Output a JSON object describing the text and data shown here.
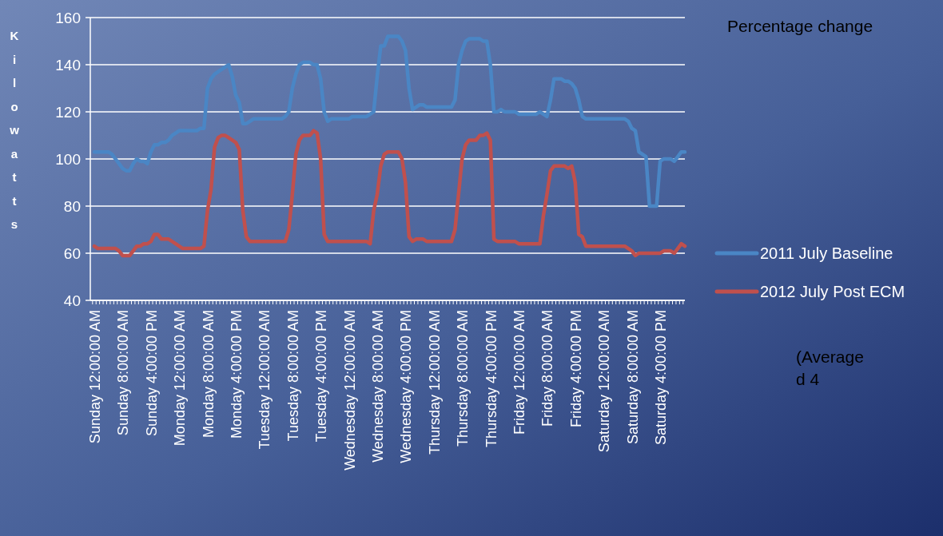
{
  "chart_data": {
    "type": "line",
    "ylabel": "Kilowatts",
    "ylim": [
      40,
      160
    ],
    "yticks": [
      40,
      60,
      80,
      100,
      120,
      140,
      160
    ],
    "grid": "y",
    "legend": "right",
    "line_style": "solid",
    "marker": "none",
    "annotations": [
      "Percentage change",
      "(Average\nd 4"
    ],
    "categories": [
      "Sunday 12:00:00 AM",
      null,
      null,
      null,
      null,
      null,
      null,
      null,
      "Sunday 8:00:00 AM",
      null,
      null,
      null,
      null,
      null,
      null,
      null,
      "Sunday 4:00:00 PM",
      null,
      null,
      null,
      null,
      null,
      null,
      null,
      "Monday 12:00:00 AM",
      null,
      null,
      null,
      null,
      null,
      null,
      null,
      "Monday 8:00:00 AM",
      null,
      null,
      null,
      null,
      null,
      null,
      null,
      "Monday 4:00:00 PM",
      null,
      null,
      null,
      null,
      null,
      null,
      null,
      "Tuesday 12:00:00 AM",
      null,
      null,
      null,
      null,
      null,
      null,
      null,
      "Tuesday 8:00:00 AM",
      null,
      null,
      null,
      null,
      null,
      null,
      null,
      "Tuesday 4:00:00 PM",
      null,
      null,
      null,
      null,
      null,
      null,
      null,
      "Wednesday 12:00:00 AM",
      null,
      null,
      null,
      null,
      null,
      null,
      null,
      "Wednesday 8:00:00 AM",
      null,
      null,
      null,
      null,
      null,
      null,
      null,
      "Wednesday 4:00:00 PM",
      null,
      null,
      null,
      null,
      null,
      null,
      null,
      "Thursday 12:00:00 AM",
      null,
      null,
      null,
      null,
      null,
      null,
      null,
      "Thursday 8:00:00 AM",
      null,
      null,
      null,
      null,
      null,
      null,
      null,
      "Thursday 4:00:00 PM",
      null,
      null,
      null,
      null,
      null,
      null,
      null,
      "Friday 12:00:00 AM",
      null,
      null,
      null,
      null,
      null,
      null,
      null,
      "Friday 8:00:00 AM",
      null,
      null,
      null,
      null,
      null,
      null,
      null,
      "Friday 4:00:00 PM",
      null,
      null,
      null,
      null,
      null,
      null,
      null,
      "Saturday 12:00:00 AM",
      null,
      null,
      null,
      null,
      null,
      null,
      null,
      "Saturday 8:00:00 AM",
      null,
      null,
      null,
      null,
      null,
      null,
      null,
      "Saturday 4:00:00 PM",
      null,
      null,
      null,
      null,
      null,
      null,
      null
    ],
    "series": [
      {
        "name": "2011 July Baseline",
        "color": "#4a86c5",
        "values": [
          103,
          103,
          103,
          103,
          103,
          102,
          100,
          98,
          96,
          95,
          95,
          98,
          100,
          99,
          99,
          98,
          103,
          106,
          106,
          107,
          107,
          108,
          110,
          111,
          112,
          112,
          112,
          112,
          112,
          112,
          113,
          113,
          130,
          134,
          136,
          137,
          138,
          139,
          140,
          135,
          127,
          124,
          115,
          115,
          116,
          117,
          117,
          117,
          117,
          117,
          117,
          117,
          117,
          117,
          118,
          120,
          130,
          136,
          140,
          141,
          141,
          141,
          140,
          140,
          134,
          120,
          116,
          117,
          117,
          117,
          117,
          117,
          117,
          118,
          118,
          118,
          118,
          118,
          119,
          120,
          135,
          148,
          148,
          152,
          152,
          152,
          152,
          150,
          146,
          130,
          121,
          122,
          123,
          123,
          122,
          122,
          122,
          122,
          122,
          122,
          122,
          122,
          125,
          140,
          146,
          150,
          151,
          151,
          151,
          151,
          150,
          150,
          140,
          120,
          120,
          121,
          120,
          120,
          120,
          120,
          119,
          119,
          119,
          119,
          119,
          119,
          120,
          119,
          118,
          125,
          134,
          134,
          134,
          133,
          133,
          132,
          130,
          125,
          118,
          117,
          117,
          117,
          117,
          117,
          117,
          117,
          117,
          117,
          117,
          117,
          117,
          116,
          113,
          112,
          103,
          102,
          101,
          80,
          80,
          80,
          99,
          100,
          100,
          100,
          99,
          101,
          103,
          103
        ]
      },
      {
        "name": "2012 July Post ECM",
        "color": "#c0504d",
        "values": [
          63,
          62,
          62,
          62,
          62,
          62,
          62,
          61,
          59,
          59,
          59,
          61,
          63,
          63,
          64,
          64,
          65,
          68,
          68,
          66,
          66,
          66,
          65,
          64,
          63,
          62,
          62,
          62,
          62,
          62,
          62,
          63,
          78,
          87,
          105,
          109,
          110,
          110,
          109,
          108,
          107,
          104,
          78,
          67,
          65,
          65,
          65,
          65,
          65,
          65,
          65,
          65,
          65,
          65,
          65,
          70,
          85,
          102,
          108,
          110,
          110,
          110,
          112,
          111,
          100,
          68,
          65,
          65,
          65,
          65,
          65,
          65,
          65,
          65,
          65,
          65,
          65,
          65,
          64,
          78,
          85,
          97,
          102,
          103,
          103,
          103,
          103,
          100,
          90,
          67,
          65,
          66,
          66,
          66,
          65,
          65,
          65,
          65,
          65,
          65,
          65,
          65,
          70,
          85,
          100,
          106,
          108,
          108,
          108,
          110,
          110,
          111,
          108,
          66,
          65,
          65,
          65,
          65,
          65,
          65,
          64,
          64,
          64,
          64,
          64,
          64,
          64,
          76,
          85,
          95,
          97,
          97,
          97,
          97,
          96,
          97,
          90,
          68,
          67,
          63,
          63,
          63,
          63,
          63,
          63,
          63,
          63,
          63,
          63,
          63,
          63,
          62,
          61,
          59,
          60,
          60,
          60,
          60,
          60,
          60,
          60,
          61,
          61,
          61,
          60,
          62,
          64,
          63
        ]
      }
    ]
  }
}
